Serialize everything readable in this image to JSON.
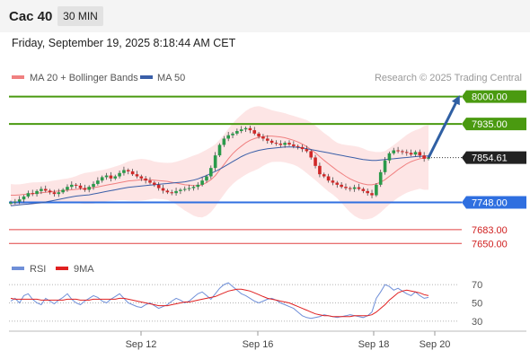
{
  "header": {
    "symbol": "Cac 40",
    "timeframe": "30 MIN",
    "datetime": "Friday, September 19, 2025 8:18:44 AM CET"
  },
  "legend": {
    "ma20_label": "MA 20 + Bollinger Bands",
    "ma50_label": "MA 50",
    "ma20_color": "#f08080",
    "ma50_color": "#3a5fa8",
    "credit": "Research © 2025 Trading Central"
  },
  "rsi_legend": {
    "rsi_label": "RSI",
    "ma_label": "9MA",
    "rsi_color": "#6f8fd8",
    "ma_color": "#e02020"
  },
  "chart_data": [
    {
      "type": "candlestick",
      "title": "Cac 40",
      "x_ticks": [
        "Sep 12",
        "Sep 16",
        "Sep 18",
        "Sep 20"
      ],
      "ylim": [
        7610,
        8025
      ],
      "last_price": 7854.61,
      "projection_target": 8000.0,
      "levels": [
        {
          "value": 8000.0,
          "label": "8000.00",
          "kind": "resistance",
          "color": "#4a9a10"
        },
        {
          "value": 7935.0,
          "label": "7935.00",
          "kind": "resistance",
          "color": "#4a9a10"
        },
        {
          "value": 7748.0,
          "label": "7748.00",
          "kind": "pivot",
          "color": "#2f6fe0"
        },
        {
          "value": 7683.0,
          "label": "7683.00",
          "kind": "support",
          "color": "#e04040"
        },
        {
          "value": 7650.0,
          "label": "7650.00",
          "kind": "support",
          "color": "#e04040"
        }
      ],
      "close": [
        7748,
        7750,
        7755,
        7762,
        7770,
        7768,
        7775,
        7780,
        7776,
        7772,
        7768,
        7772,
        7778,
        7785,
        7790,
        7788,
        7782,
        7778,
        7785,
        7792,
        7800,
        7808,
        7812,
        7805,
        7810,
        7818,
        7825,
        7822,
        7815,
        7810,
        7805,
        7800,
        7795,
        7790,
        7782,
        7776,
        7772,
        7770,
        7775,
        7778,
        7780,
        7782,
        7785,
        7790,
        7800,
        7810,
        7830,
        7860,
        7885,
        7900,
        7908,
        7912,
        7918,
        7922,
        7925,
        7920,
        7912,
        7905,
        7900,
        7895,
        7890,
        7888,
        7885,
        7890,
        7886,
        7882,
        7880,
        7875,
        7870,
        7855,
        7835,
        7815,
        7810,
        7800,
        7795,
        7790,
        7785,
        7782,
        7780,
        7784,
        7780,
        7775,
        7770,
        7765,
        7790,
        7820,
        7848,
        7865,
        7872,
        7870,
        7868,
        7866,
        7862,
        7868,
        7860,
        7852,
        7854.61
      ],
      "ma20": [
        7765,
        7765,
        7766,
        7767,
        7768,
        7769,
        7770,
        7771,
        7772,
        7773,
        7774,
        7775,
        7776,
        7777,
        7778,
        7779,
        7780,
        7781,
        7782,
        7783,
        7785,
        7787,
        7789,
        7791,
        7793,
        7795,
        7797,
        7799,
        7800,
        7801,
        7802,
        7802,
        7802,
        7801,
        7800,
        7799,
        7798,
        7796,
        7794,
        7792,
        7790,
        7789,
        7788,
        7788,
        7790,
        7795,
        7802,
        7812,
        7825,
        7838,
        7852,
        7864,
        7874,
        7882,
        7890,
        7896,
        7900,
        7903,
        7905,
        7906,
        7906,
        7905,
        7904,
        7902,
        7899,
        7896,
        7892,
        7887,
        7881,
        7874,
        7866,
        7857,
        7848,
        7840,
        7832,
        7824,
        7817,
        7810,
        7804,
        7799,
        7795,
        7792,
        7790,
        7790,
        7792,
        7796,
        7802,
        7810,
        7818,
        7826,
        7833,
        7840,
        7845,
        7849,
        7852,
        7854,
        7855
      ],
      "ma50": [
        7740,
        7741,
        7742,
        7743,
        7744,
        7745,
        7746,
        7747,
        7749,
        7751,
        7753,
        7755,
        7757,
        7759,
        7761,
        7763,
        7764,
        7765,
        7766,
        7768,
        7770,
        7772,
        7774,
        7776,
        7778,
        7780,
        7782,
        7784,
        7785,
        7786,
        7787,
        7788,
        7789,
        7790,
        7791,
        7792,
        7793,
        7794,
        7795,
        7796,
        7797,
        7799,
        7801,
        7804,
        7808,
        7812,
        7817,
        7822,
        7827,
        7833,
        7839,
        7845,
        7851,
        7857,
        7862,
        7866,
        7869,
        7872,
        7874,
        7876,
        7877,
        7878,
        7879,
        7880,
        7880,
        7880,
        7879,
        7878,
        7876,
        7874,
        7872,
        7870,
        7868,
        7866,
        7864,
        7862,
        7860,
        7858,
        7856,
        7854,
        7852,
        7850,
        7849,
        7848,
        7848,
        7849,
        7850,
        7851,
        7852,
        7853,
        7854,
        7855,
        7856,
        7857,
        7858,
        7858,
        7859
      ]
    },
    {
      "type": "line",
      "title": "RSI",
      "ylim": [
        22,
        78
      ],
      "y_ticks": [
        70,
        50,
        30
      ],
      "series": [
        {
          "name": "RSI",
          "values": [
            52,
            55,
            50,
            58,
            60,
            54,
            50,
            48,
            55,
            52,
            49,
            53,
            56,
            60,
            54,
            50,
            48,
            52,
            55,
            58,
            56,
            52,
            50,
            54,
            57,
            60,
            55,
            50,
            48,
            46,
            45,
            48,
            50,
            47,
            44,
            46,
            48,
            52,
            55,
            53,
            50,
            52,
            56,
            60,
            62,
            58,
            54,
            60,
            66,
            70,
            72,
            68,
            64,
            60,
            58,
            55,
            52,
            50,
            52,
            54,
            55,
            53,
            50,
            48,
            46,
            44,
            40,
            36,
            34,
            33,
            34,
            35,
            37,
            36,
            35,
            34,
            35,
            36,
            37,
            36,
            35,
            34,
            36,
            40,
            55,
            62,
            70,
            68,
            64,
            66,
            63,
            60,
            58,
            62,
            58,
            55,
            56
          ]
        },
        {
          "name": "9MA",
          "values": [
            55,
            54,
            54,
            54,
            54,
            54,
            54,
            53,
            53,
            53,
            53,
            53,
            53,
            54,
            54,
            54,
            53,
            53,
            53,
            54,
            54,
            54,
            54,
            54,
            54,
            55,
            55,
            54,
            53,
            52,
            51,
            50,
            49,
            48,
            47,
            47,
            47,
            48,
            49,
            50,
            51,
            51,
            52,
            53,
            54,
            55,
            56,
            57,
            59,
            61,
            63,
            64,
            65,
            65,
            64,
            63,
            61,
            59,
            57,
            55,
            54,
            53,
            52,
            51,
            50,
            48,
            46,
            44,
            42,
            40,
            38,
            37,
            36,
            36,
            35,
            35,
            35,
            35,
            35,
            36,
            36,
            36,
            36,
            37,
            40,
            44,
            48,
            53,
            57,
            61,
            63,
            64,
            63,
            62,
            61,
            59,
            58
          ]
        }
      ]
    }
  ]
}
